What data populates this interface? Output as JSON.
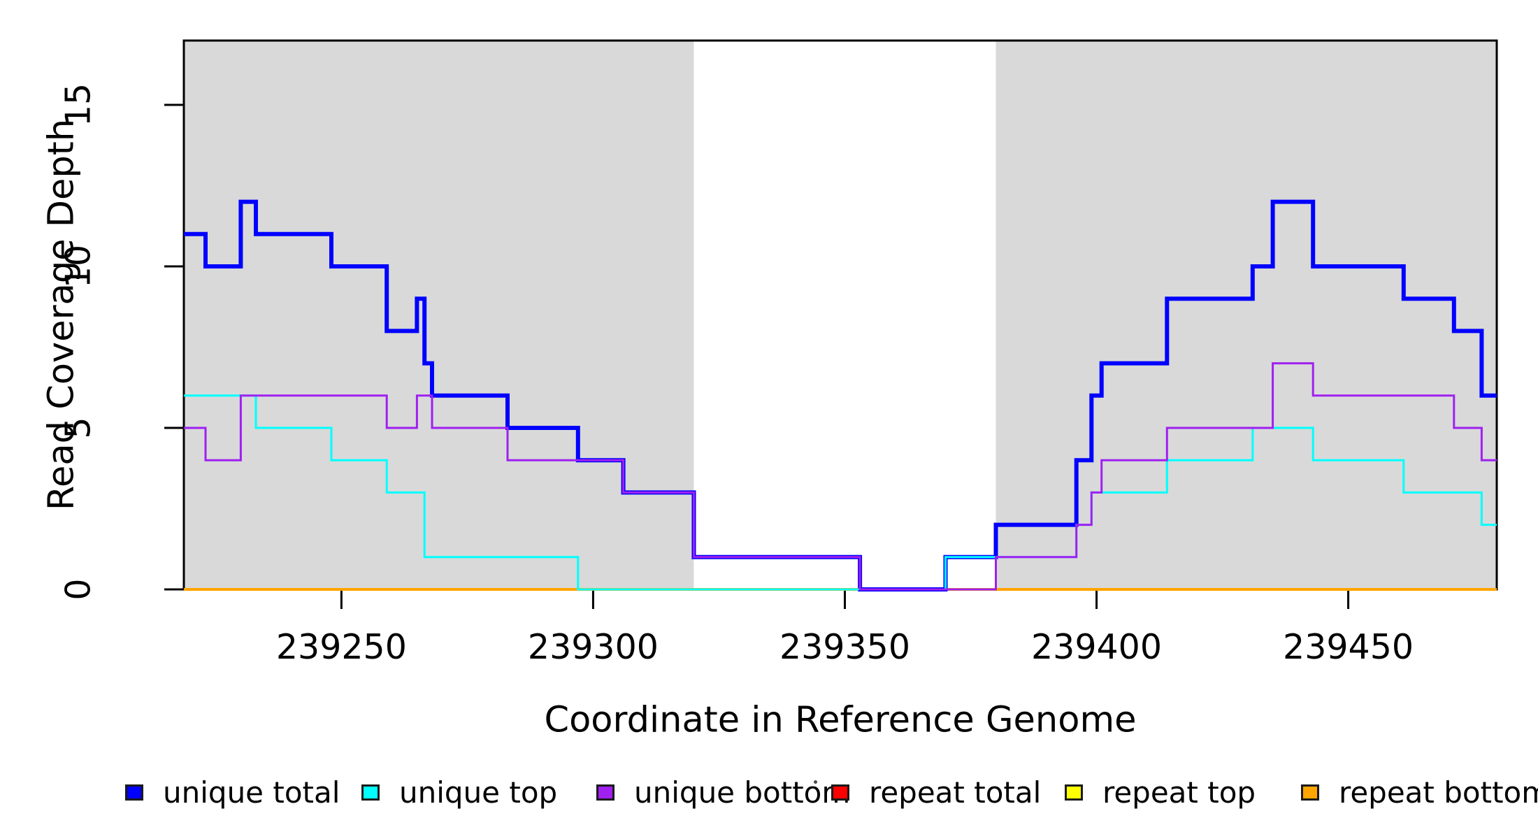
{
  "chart_data": {
    "type": "line",
    "subtype": "step-coverage-plot",
    "xlabel": "Coordinate in Reference Genome",
    "ylabel": "Read Coverage Depth",
    "x_domain": [
      239218.7,
      239479.5
    ],
    "ylim": [
      0,
      17
    ],
    "grid": "off",
    "legend_position": "bottom",
    "shade_color": "#d9d9d9",
    "shaded_regions": [
      [
        239218.7,
        239320
      ],
      [
        239380,
        239479.5
      ]
    ],
    "xticks": {
      "values": [
        239250,
        239300,
        239350,
        239400,
        239450
      ],
      "labels": [
        "239250",
        "239300",
        "239350",
        "239400",
        "239450"
      ]
    },
    "yticks": {
      "values": [
        0,
        5,
        10,
        15
      ],
      "labels": [
        "0",
        "5",
        "10",
        "15"
      ]
    },
    "draw_order": [
      "repeat top",
      "repeat total",
      "repeat bottom",
      "unique total",
      "unique top",
      "unique bottom"
    ],
    "series": [
      {
        "name": "unique total",
        "color": "#0000ff",
        "width": 6,
        "points": [
          [
            239218.7,
            11
          ],
          [
            239223,
            10
          ],
          [
            239230,
            12
          ],
          [
            239233,
            11
          ],
          [
            239248,
            10
          ],
          [
            239259,
            8
          ],
          [
            239265,
            9
          ],
          [
            239266.5,
            7
          ],
          [
            239268,
            6
          ],
          [
            239283,
            5
          ],
          [
            239297,
            4
          ],
          [
            239306,
            3
          ],
          [
            239320,
            1
          ],
          [
            239353,
            0
          ],
          [
            239370,
            1
          ],
          [
            239380,
            2
          ],
          [
            239396,
            4
          ],
          [
            239399,
            6
          ],
          [
            239401,
            7
          ],
          [
            239414,
            9
          ],
          [
            239431,
            10
          ],
          [
            239435,
            12
          ],
          [
            239443,
            10
          ],
          [
            239461,
            9
          ],
          [
            239471,
            8
          ],
          [
            239476.5,
            6
          ]
        ]
      },
      {
        "name": "unique top",
        "color": "#00ffff",
        "width": 3,
        "points": [
          [
            239218.7,
            6
          ],
          [
            239233,
            5
          ],
          [
            239248,
            4
          ],
          [
            239259,
            3
          ],
          [
            239266.5,
            1
          ],
          [
            239297,
            0
          ],
          [
            239370,
            1
          ],
          [
            239396,
            2
          ],
          [
            239399,
            3
          ],
          [
            239414,
            4
          ],
          [
            239431,
            5
          ],
          [
            239443,
            4
          ],
          [
            239461,
            3
          ],
          [
            239476.5,
            2
          ]
        ]
      },
      {
        "name": "unique bottom",
        "color": "#a020f0",
        "width": 3,
        "points": [
          [
            239218.7,
            5
          ],
          [
            239223,
            4
          ],
          [
            239230,
            6
          ],
          [
            239259,
            5
          ],
          [
            239265,
            6
          ],
          [
            239268,
            5
          ],
          [
            239283,
            4
          ],
          [
            239306,
            3
          ],
          [
            239320,
            1
          ],
          [
            239353,
            0
          ],
          [
            239380,
            1
          ],
          [
            239396,
            2
          ],
          [
            239399,
            3
          ],
          [
            239401,
            4
          ],
          [
            239414,
            5
          ],
          [
            239435,
            7
          ],
          [
            239443,
            6
          ],
          [
            239471,
            5
          ],
          [
            239476.5,
            4
          ]
        ]
      },
      {
        "name": "repeat total",
        "color": "#ff0000",
        "width": 3,
        "points": [
          [
            239218.7,
            0
          ]
        ]
      },
      {
        "name": "repeat top",
        "color": "#ffff00",
        "width": 3,
        "points": [
          [
            239218.7,
            0
          ]
        ]
      },
      {
        "name": "repeat bottom",
        "color": "#ffa500",
        "width": 4,
        "points": [
          [
            239218.7,
            0
          ]
        ]
      }
    ]
  },
  "axes": {
    "xlabel": "Coordinate in Reference Genome",
    "ylabel": "Read Coverage Depth"
  },
  "legend": {
    "items": [
      {
        "label": "unique total",
        "color": "#0000ff"
      },
      {
        "label": "unique top",
        "color": "#00ffff"
      },
      {
        "label": "unique bottom",
        "color": "#a020f0"
      },
      {
        "label": "repeat total",
        "color": "#ff0000"
      },
      {
        "label": "repeat top",
        "color": "#ffff00"
      },
      {
        "label": "repeat bottom",
        "color": "#ffa500"
      }
    ]
  }
}
